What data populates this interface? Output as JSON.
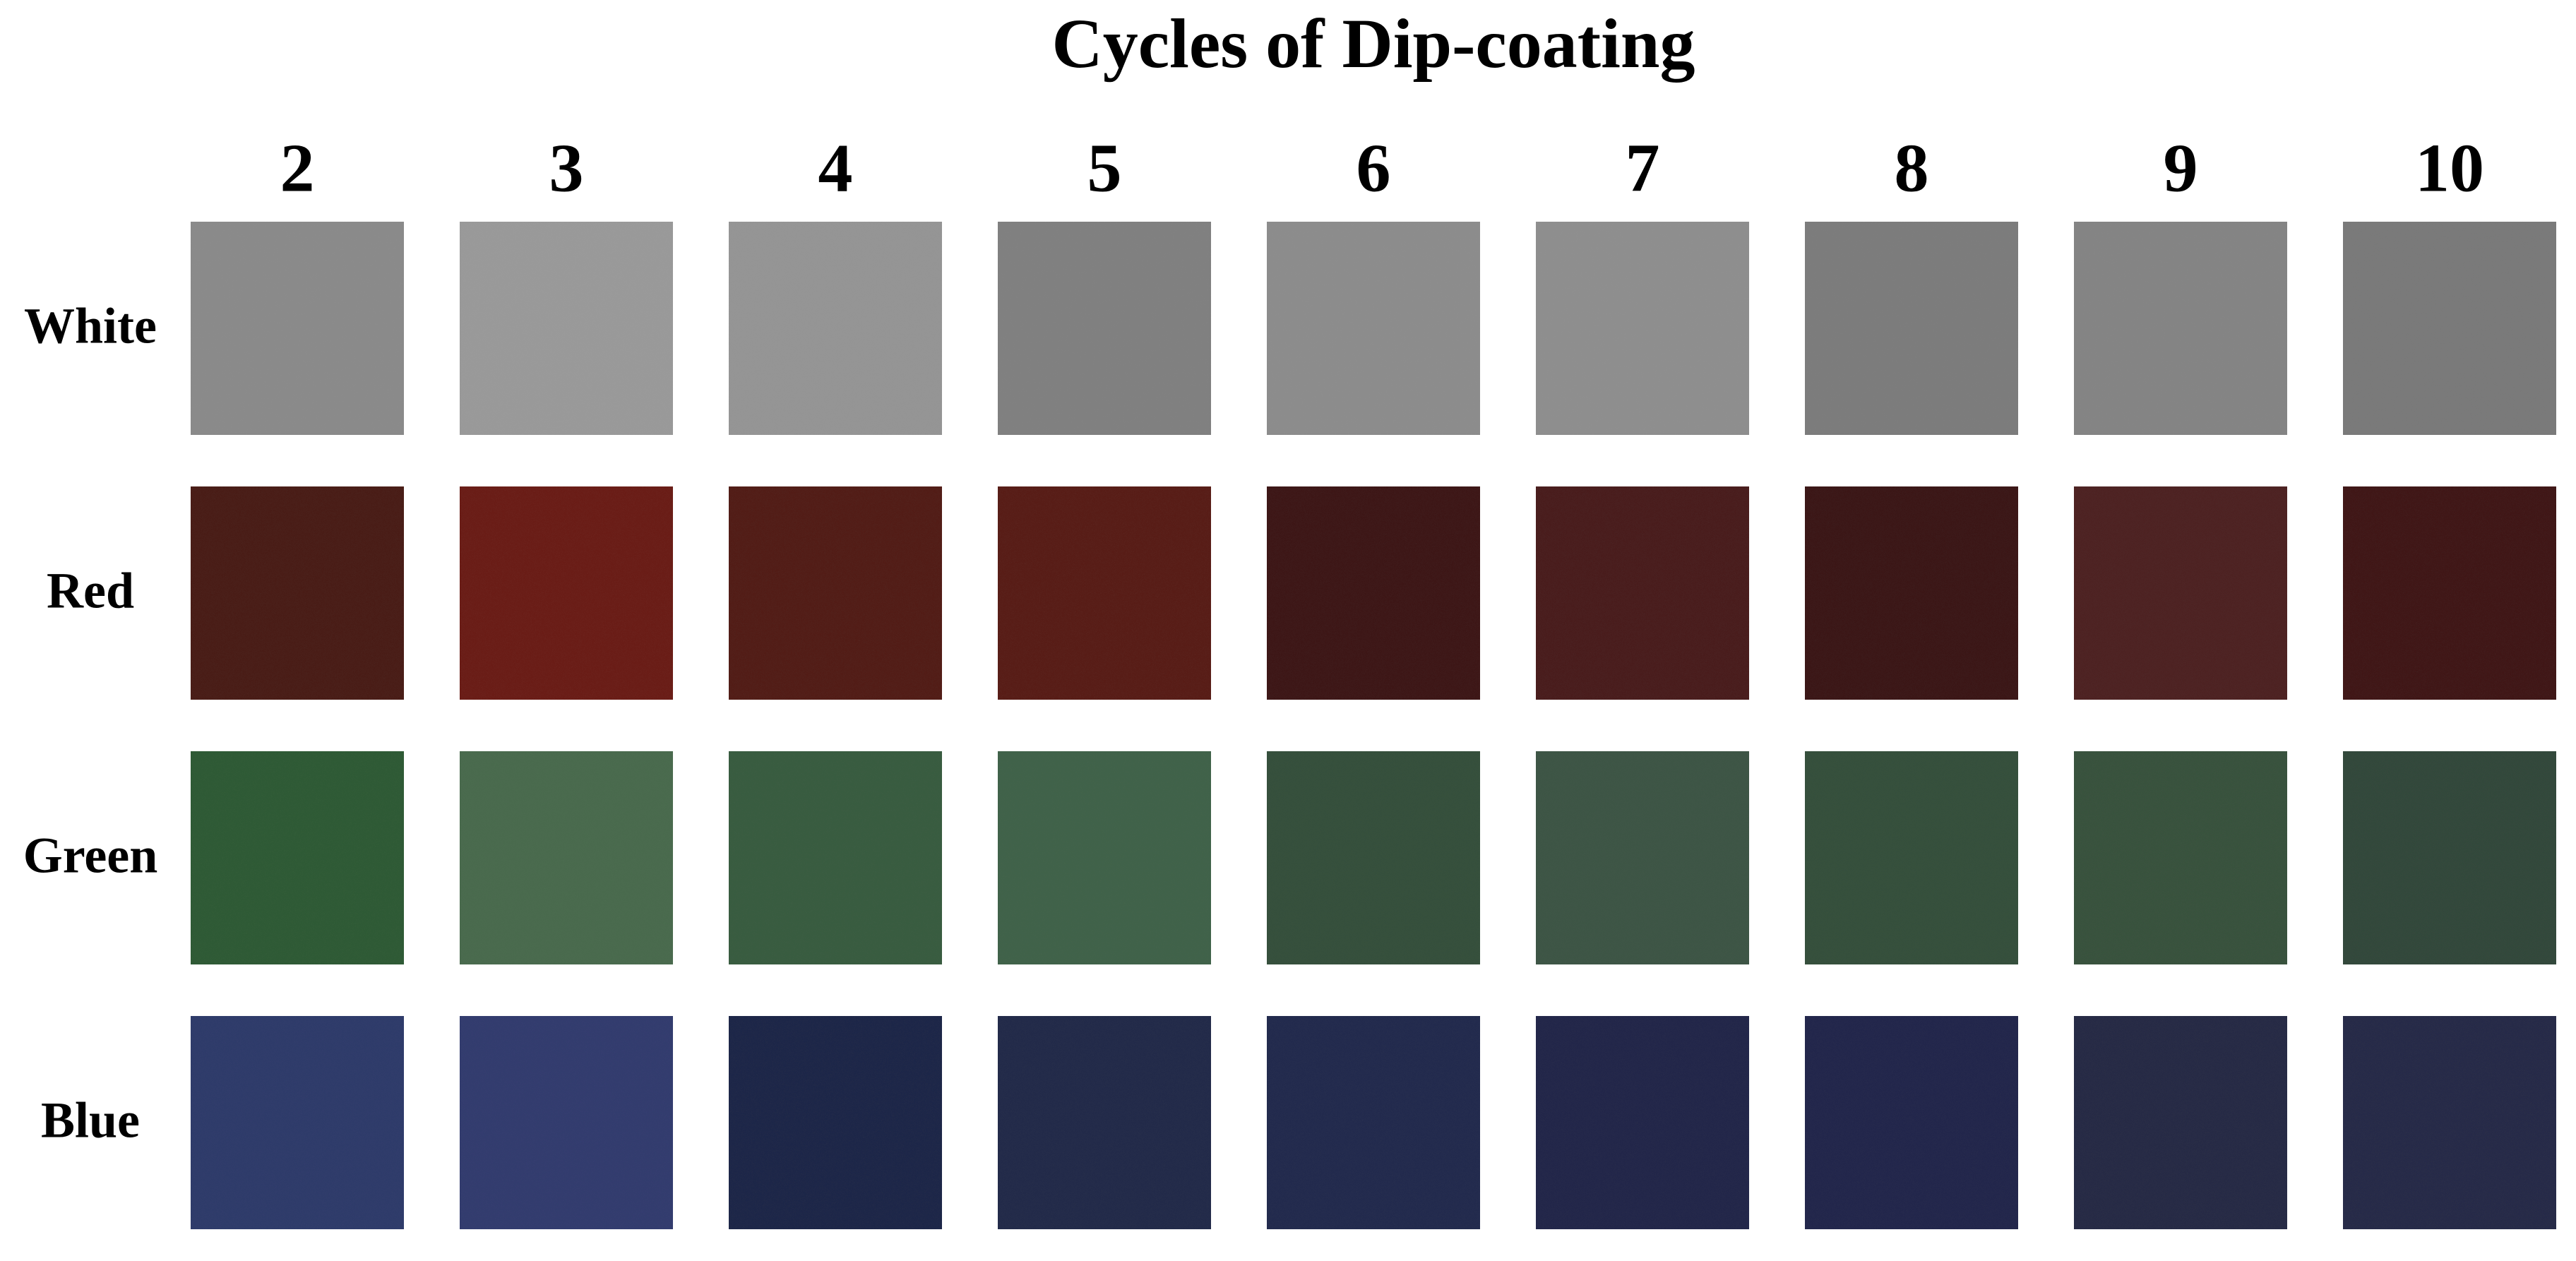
{
  "header": {
    "title": "Cycles of Dip-coating"
  },
  "columns": [
    "2",
    "3",
    "4",
    "5",
    "6",
    "7",
    "8",
    "9",
    "10"
  ],
  "rows": [
    {
      "label": "White",
      "colors": [
        "#8a8a8a",
        "#999999",
        "#959595",
        "#808080",
        "#8c8c8c",
        "#8e8e8e",
        "#7c7c7c",
        "#848484",
        "#7a7a7a"
      ]
    },
    {
      "label": "Red",
      "colors": [
        "#4a1a18",
        "#6a1c16",
        "#521c18",
        "#581c18",
        "#3e1414",
        "#4a1e1c",
        "#3a1616",
        "#4e2422",
        "#401818"
      ]
    },
    {
      "label": "Green",
      "colors": [
        "#2e5a36",
        "#4a6a4e",
        "#385c40",
        "#40624a",
        "#34503c",
        "#3e5444",
        "#34503c",
        "#38523e",
        "#32483a"
      ]
    },
    {
      "label": "Blue",
      "colors": [
        "#2e3a6a",
        "#303c6e",
        "#1e2648",
        "#222a4a",
        "#242a4e",
        "#20284a",
        "#20284c",
        "#262a44",
        "#262c48"
      ]
    }
  ]
}
